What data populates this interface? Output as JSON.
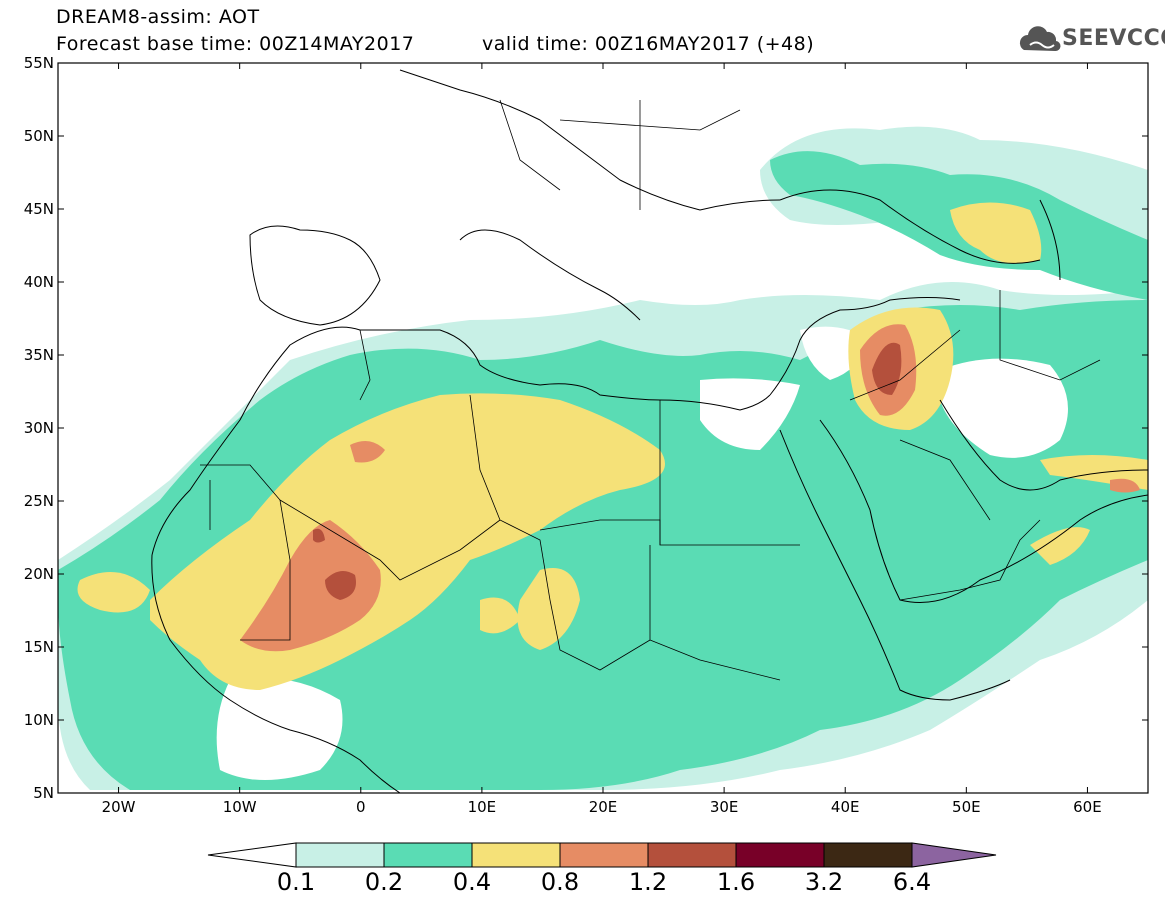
{
  "header": {
    "title": "DREAM8-assim: AOT",
    "base_time": "Forecast base time: 00Z14MAY2017",
    "valid_time": "valid time: 00Z16MAY2017 (+48)"
  },
  "logo": {
    "text": "SEEVCCC",
    "icon": "cloud-icon"
  },
  "axes": {
    "lat_labels": [
      "55N",
      "50N",
      "45N",
      "40N",
      "35N",
      "30N",
      "25N",
      "20N",
      "15N",
      "10N",
      "5N"
    ],
    "lon_labels": [
      "20W",
      "10W",
      "0",
      "10E",
      "20E",
      "30E",
      "40E",
      "50E",
      "60E"
    ],
    "lon_range": [
      -25,
      65
    ],
    "lat_range": [
      5,
      55
    ]
  },
  "colorbar": {
    "levels": [
      "0.1",
      "0.2",
      "0.4",
      "0.8",
      "1.2",
      "1.6",
      "3.2",
      "6.4"
    ],
    "colors": [
      "#c8f0e6",
      "#5adcb4",
      "#f5e178",
      "#e68c64",
      "#b4503c",
      "#780028",
      "#3c2814",
      "#8c64a0"
    ]
  }
}
